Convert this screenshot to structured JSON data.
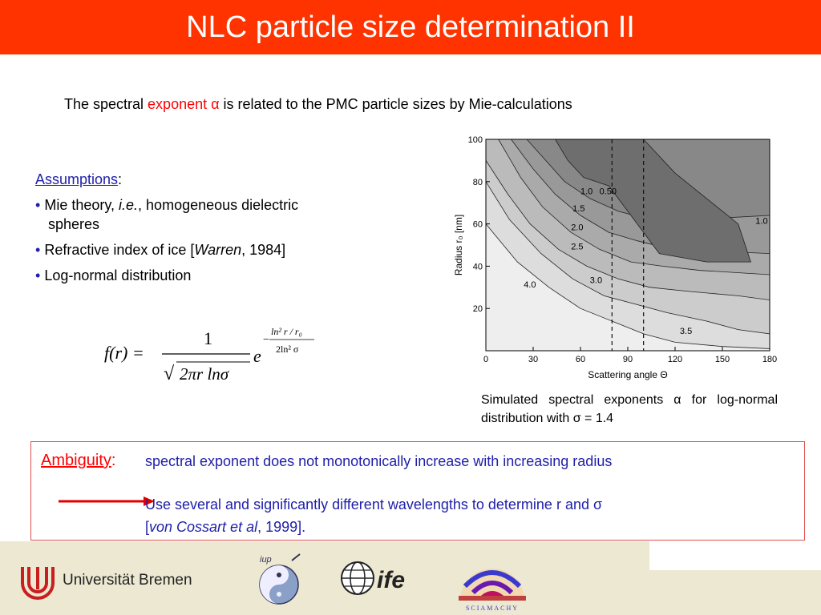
{
  "title": "NLC particle size determination II",
  "intro": {
    "before": "The spectral ",
    "highlight": "exponent",
    "alpha": "α",
    "after": " is related to the PMC particle sizes by Mie-calculations"
  },
  "assumptions": {
    "heading": "Assumptions",
    "colon": ":",
    "items": [
      {
        "a": "Mie theory, ",
        "i": "i.e.",
        "b": ", homogeneous dielectric",
        "cont": "spheres"
      },
      {
        "a": "Refractive index of ice [",
        "i": "Warren",
        "b": ", 1984]"
      },
      {
        "a": "Log-normal distribution"
      }
    ]
  },
  "formula": {
    "lhs": "f(r) =",
    "num": "1",
    "den_prefix": "√",
    "den": "2πr lnσ",
    "e": "e",
    "exp_num": "ln² r / r₀",
    "exp_den": "2ln² σ",
    "minus": "−"
  },
  "chart_data": {
    "type": "contour",
    "xlabel": "Scattering angle Θ",
    "ylabel": "Radius r₀ [nm]",
    "xlim": [
      0,
      180
    ],
    "ylim": [
      0,
      100
    ],
    "xticks": [
      0,
      30,
      60,
      90,
      120,
      150,
      180
    ],
    "yticks": [
      20,
      40,
      60,
      80,
      100
    ],
    "dashed_x": [
      80,
      100
    ],
    "contour_labels": [
      {
        "text": "1.0",
        "x": 60,
        "y": 74
      },
      {
        "text": "0.50",
        "x": 72,
        "y": 74
      },
      {
        "text": "1.5",
        "x": 55,
        "y": 66
      },
      {
        "text": "2.0",
        "x": 54,
        "y": 57
      },
      {
        "text": "2.5",
        "x": 54,
        "y": 48
      },
      {
        "text": "3.0",
        "x": 66,
        "y": 32
      },
      {
        "text": "4.0",
        "x": 24,
        "y": 30
      },
      {
        "text": "3.5",
        "x": 123,
        "y": 8
      },
      {
        "text": "1.0",
        "x": 171,
        "y": 60
      }
    ],
    "bands": [
      {
        "level": "4.0+",
        "color": "#eeeeee"
      },
      {
        "level": "3.5",
        "color": "#dddddd"
      },
      {
        "level": "3.0",
        "color": "#cccccc"
      },
      {
        "level": "2.5",
        "color": "#bbbbbb"
      },
      {
        "level": "2.0",
        "color": "#aaaaaa"
      },
      {
        "level": "1.5",
        "color": "#999999"
      },
      {
        "level": "1.0",
        "color": "#888888"
      },
      {
        "level": "0.5",
        "color": "#6e6e6e"
      }
    ]
  },
  "caption": "Simulated spectral exponents α for log-normal distribution with σ = 1.4",
  "ambiguity": {
    "label": "Ambiguity",
    "colon": ":",
    "text": "spectral exponent does not monotonically increase with increasing radius",
    "solution1": "Use several and significantly different wavelengths to determine r and σ",
    "solution2_a": "[",
    "solution2_i": "von Cossart et al",
    "solution2_b": ", 1999]."
  },
  "footer": {
    "university": "Universität Bremen",
    "logo_iup": "iup",
    "logo_ife": "ife",
    "logo_scia": "SCIAMACHY"
  },
  "colors": {
    "title_bar": "#ff3300",
    "accent_blue": "#2020aa",
    "highlight_red": "#ff0000",
    "footer_bg": "#ece8d2"
  }
}
